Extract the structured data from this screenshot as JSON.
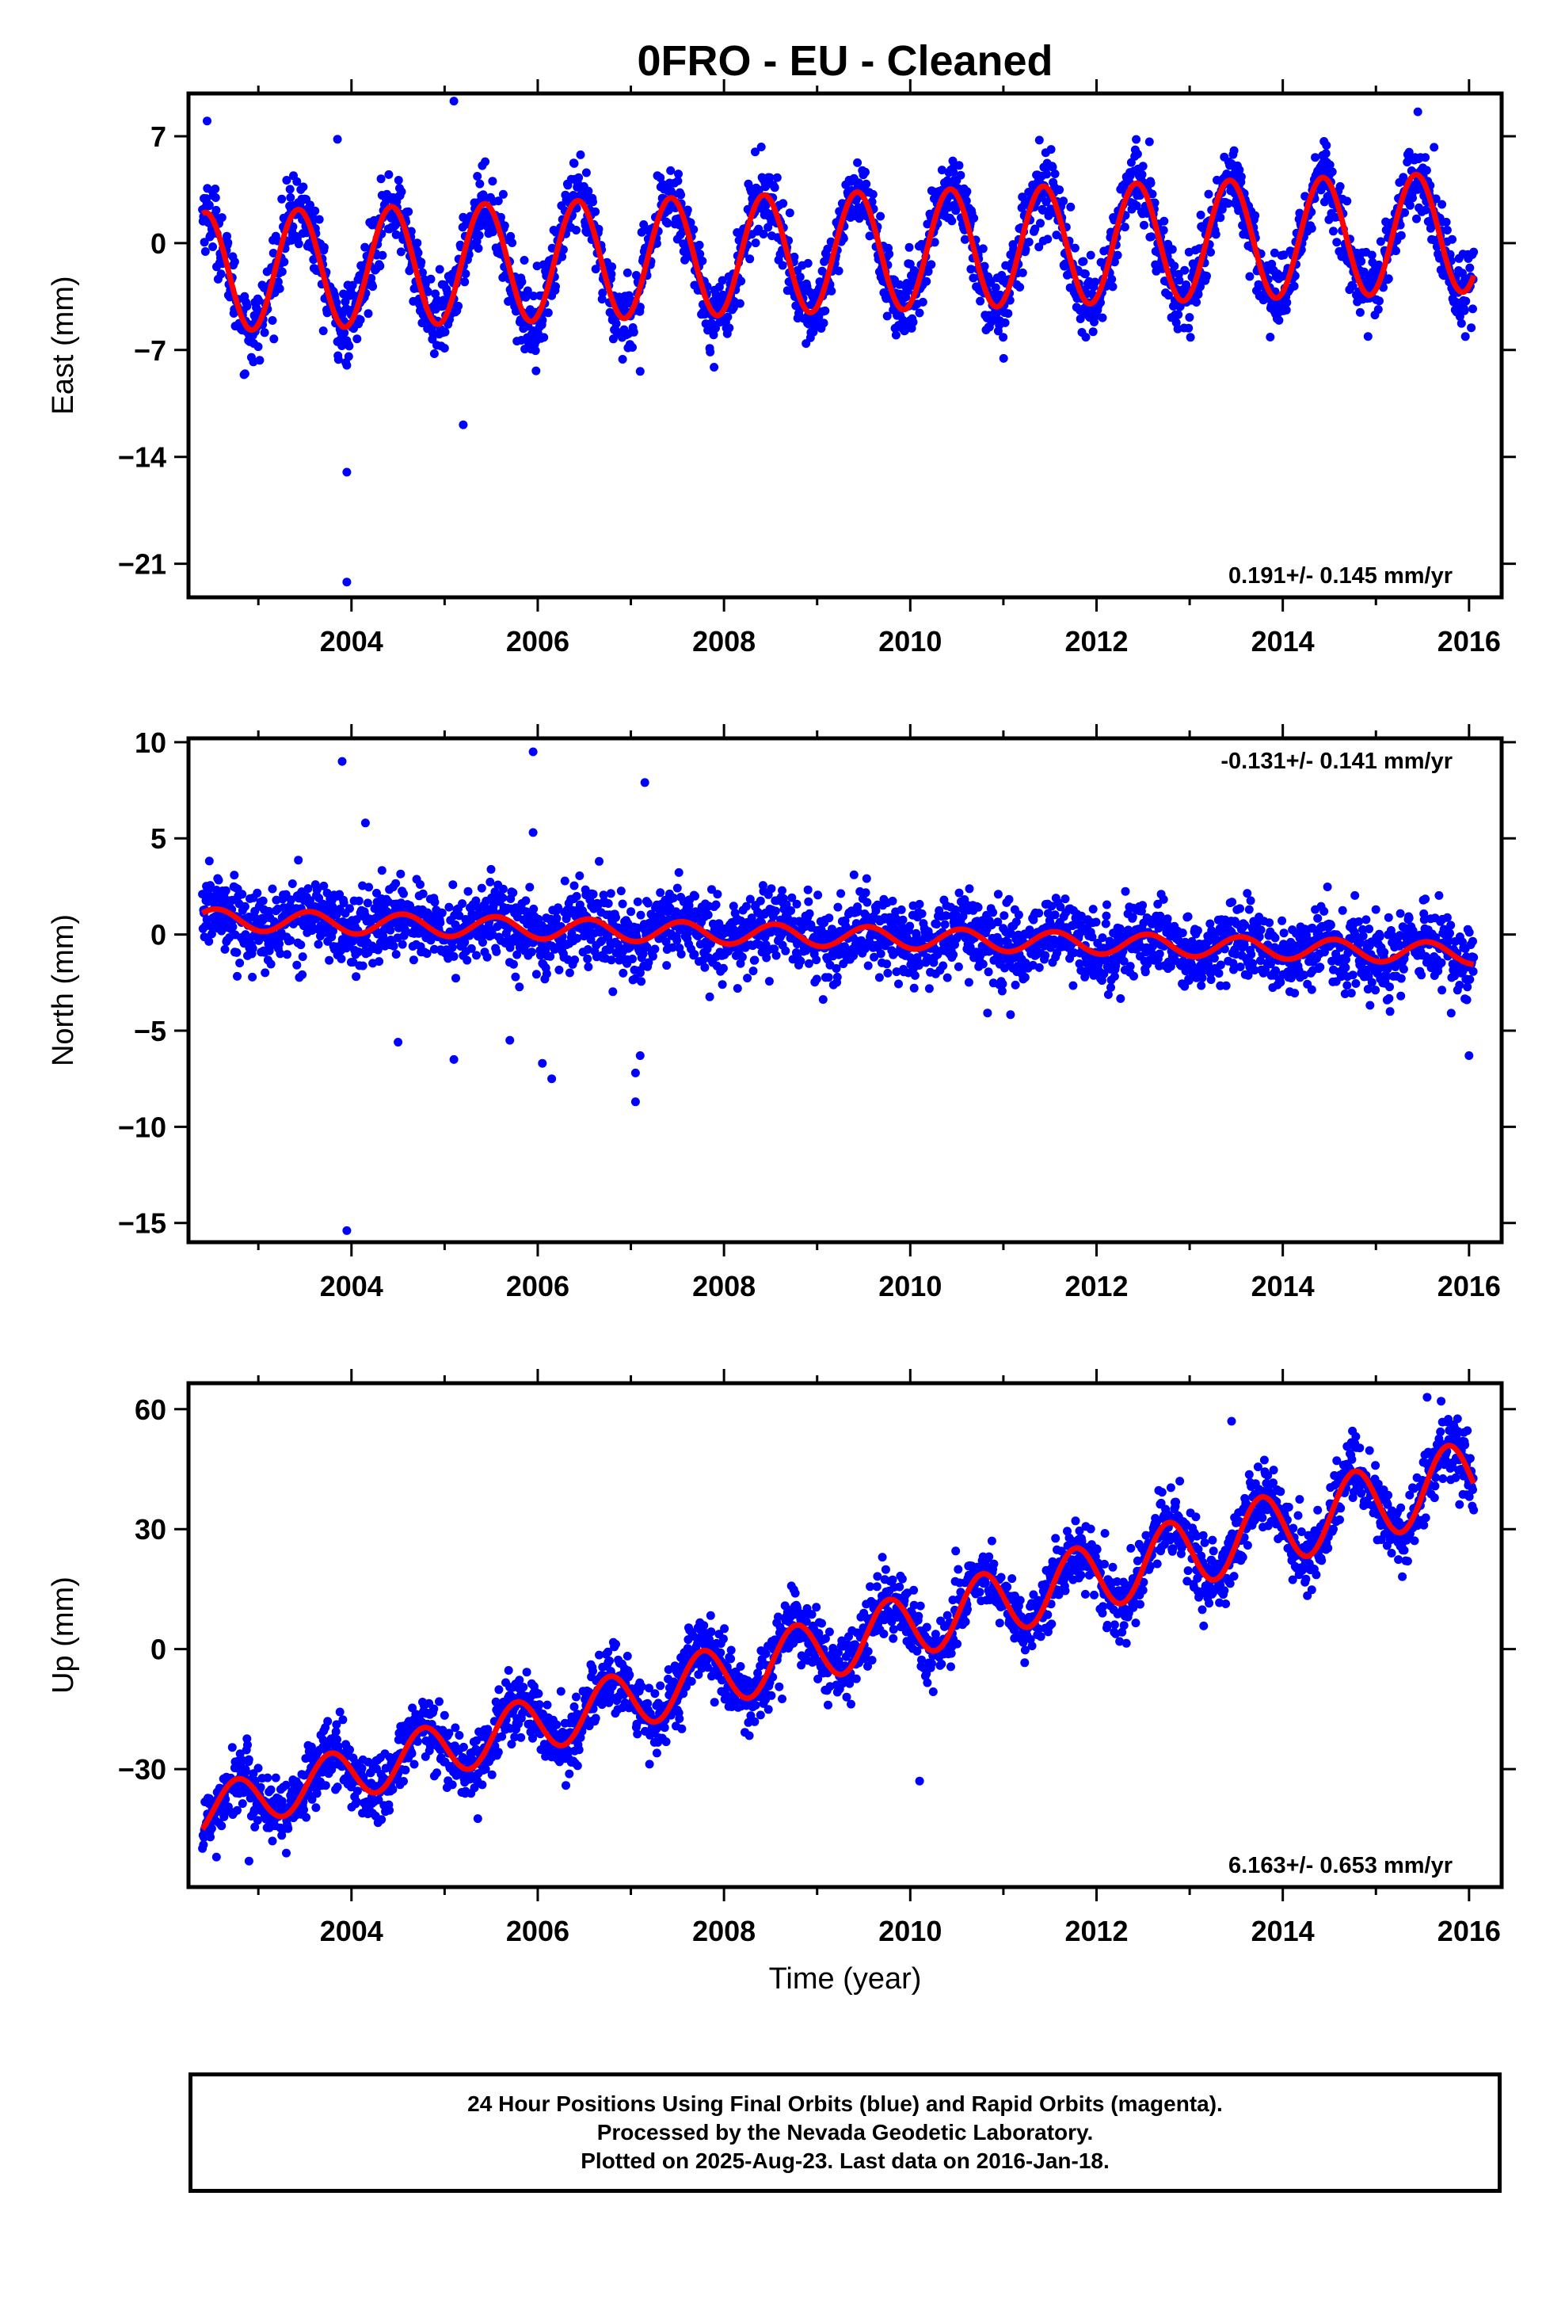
{
  "title": "0FRO  - EU - Cleaned",
  "footer": {
    "line1": "24 Hour Positions Using Final Orbits (blue) and Rapid Orbits (magenta).",
    "line2": "Processed by the Nevada Geodetic Laboratory.",
    "line3": "Plotted on 2025-Aug-23. Last data on 2016-Jan-18."
  },
  "colors": {
    "data_points": "#0000ff",
    "model_fit": "#ff0000",
    "frame": "#000000"
  },
  "chart_data": [
    {
      "type": "scatter",
      "ylabel": "East (mm)",
      "xlabel": "",
      "xlim": [
        2002.25,
        2016.35
      ],
      "ylim": [
        -23.2,
        9.8
      ],
      "xticks": [
        2004,
        2006,
        2008,
        2010,
        2012,
        2014,
        2016
      ],
      "yticks": [
        7,
        0,
        -7,
        -14,
        -21
      ],
      "rate_label": "0.191+/- 0.145 mm/yr",
      "rate_position": "bottom-right",
      "model": {
        "offset": -0.6,
        "rate": 0.191,
        "ref_year": 2009.2,
        "amp_start": 3.9,
        "amp_end": 3.9,
        "phase": 0.18
      },
      "noise_sd": 1.2,
      "outliers": [
        [
          2002.45,
          8.0
        ],
        [
          2003.85,
          6.8
        ],
        [
          2003.95,
          -8.0
        ],
        [
          2003.95,
          -15.0
        ],
        [
          2003.95,
          -22.2
        ],
        [
          2005.1,
          9.3
        ],
        [
          2005.2,
          -11.9
        ],
        [
          2007.1,
          -8.4
        ],
        [
          2008.4,
          6.3
        ],
        [
          2015.45,
          8.6
        ]
      ]
    },
    {
      "type": "scatter",
      "ylabel": "North (mm)",
      "xlabel": "",
      "xlim": [
        2002.25,
        2016.35
      ],
      "ylim": [
        -16.0,
        10.2
      ],
      "xticks": [
        2004,
        2006,
        2008,
        2010,
        2012,
        2014,
        2016
      ],
      "yticks": [
        10,
        5,
        0,
        -5,
        -10,
        -15
      ],
      "rate_label": "-0.131+/- 0.141 mm/yr",
      "rate_position": "top-right",
      "model": {
        "offset": -0.1,
        "rate": -0.131,
        "ref_year": 2009.2,
        "amp_start": 0.55,
        "amp_end": 0.55,
        "phase": 0.3
      },
      "noise_sd": 1.0,
      "outliers": [
        [
          2003.9,
          9.0
        ],
        [
          2004.15,
          5.8
        ],
        [
          2005.95,
          9.5
        ],
        [
          2005.95,
          5.3
        ],
        [
          2007.15,
          7.9
        ],
        [
          2004.5,
          -5.6
        ],
        [
          2005.1,
          -6.5
        ],
        [
          2005.7,
          -5.5
        ],
        [
          2006.05,
          -6.7
        ],
        [
          2006.15,
          -7.5
        ],
        [
          2007.05,
          -7.2
        ],
        [
          2007.05,
          -8.7
        ],
        [
          2007.1,
          -6.3
        ],
        [
          2003.95,
          -15.4
        ],
        [
          2016.0,
          -6.3
        ]
      ]
    },
    {
      "type": "scatter",
      "ylabel": "Up (mm)",
      "xlabel": "Time (year)",
      "xlim": [
        2002.25,
        2016.35
      ],
      "ylim": [
        -59.5,
        66.5
      ],
      "xticks": [
        2004,
        2006,
        2008,
        2010,
        2012,
        2014,
        2016
      ],
      "yticks": [
        60,
        30,
        0,
        -30
      ],
      "rate_label": "6.163+/- 0.653 mm/yr",
      "rate_position": "bottom-right",
      "model": {
        "offset": 1.0,
        "rate": 6.163,
        "ref_year": 2009.2,
        "amp_start": 6.0,
        "amp_end": 9.5,
        "phase": 0.52
      },
      "noise_sd": 4.2,
      "outliers": [
        [
          2002.55,
          -52.0
        ],
        [
          2002.9,
          -53.0
        ],
        [
          2003.3,
          -51.0
        ],
        [
          2010.1,
          -33.0
        ],
        [
          2015.55,
          63.0
        ],
        [
          2015.7,
          62.0
        ],
        [
          2013.45,
          57.0
        ]
      ]
    }
  ]
}
